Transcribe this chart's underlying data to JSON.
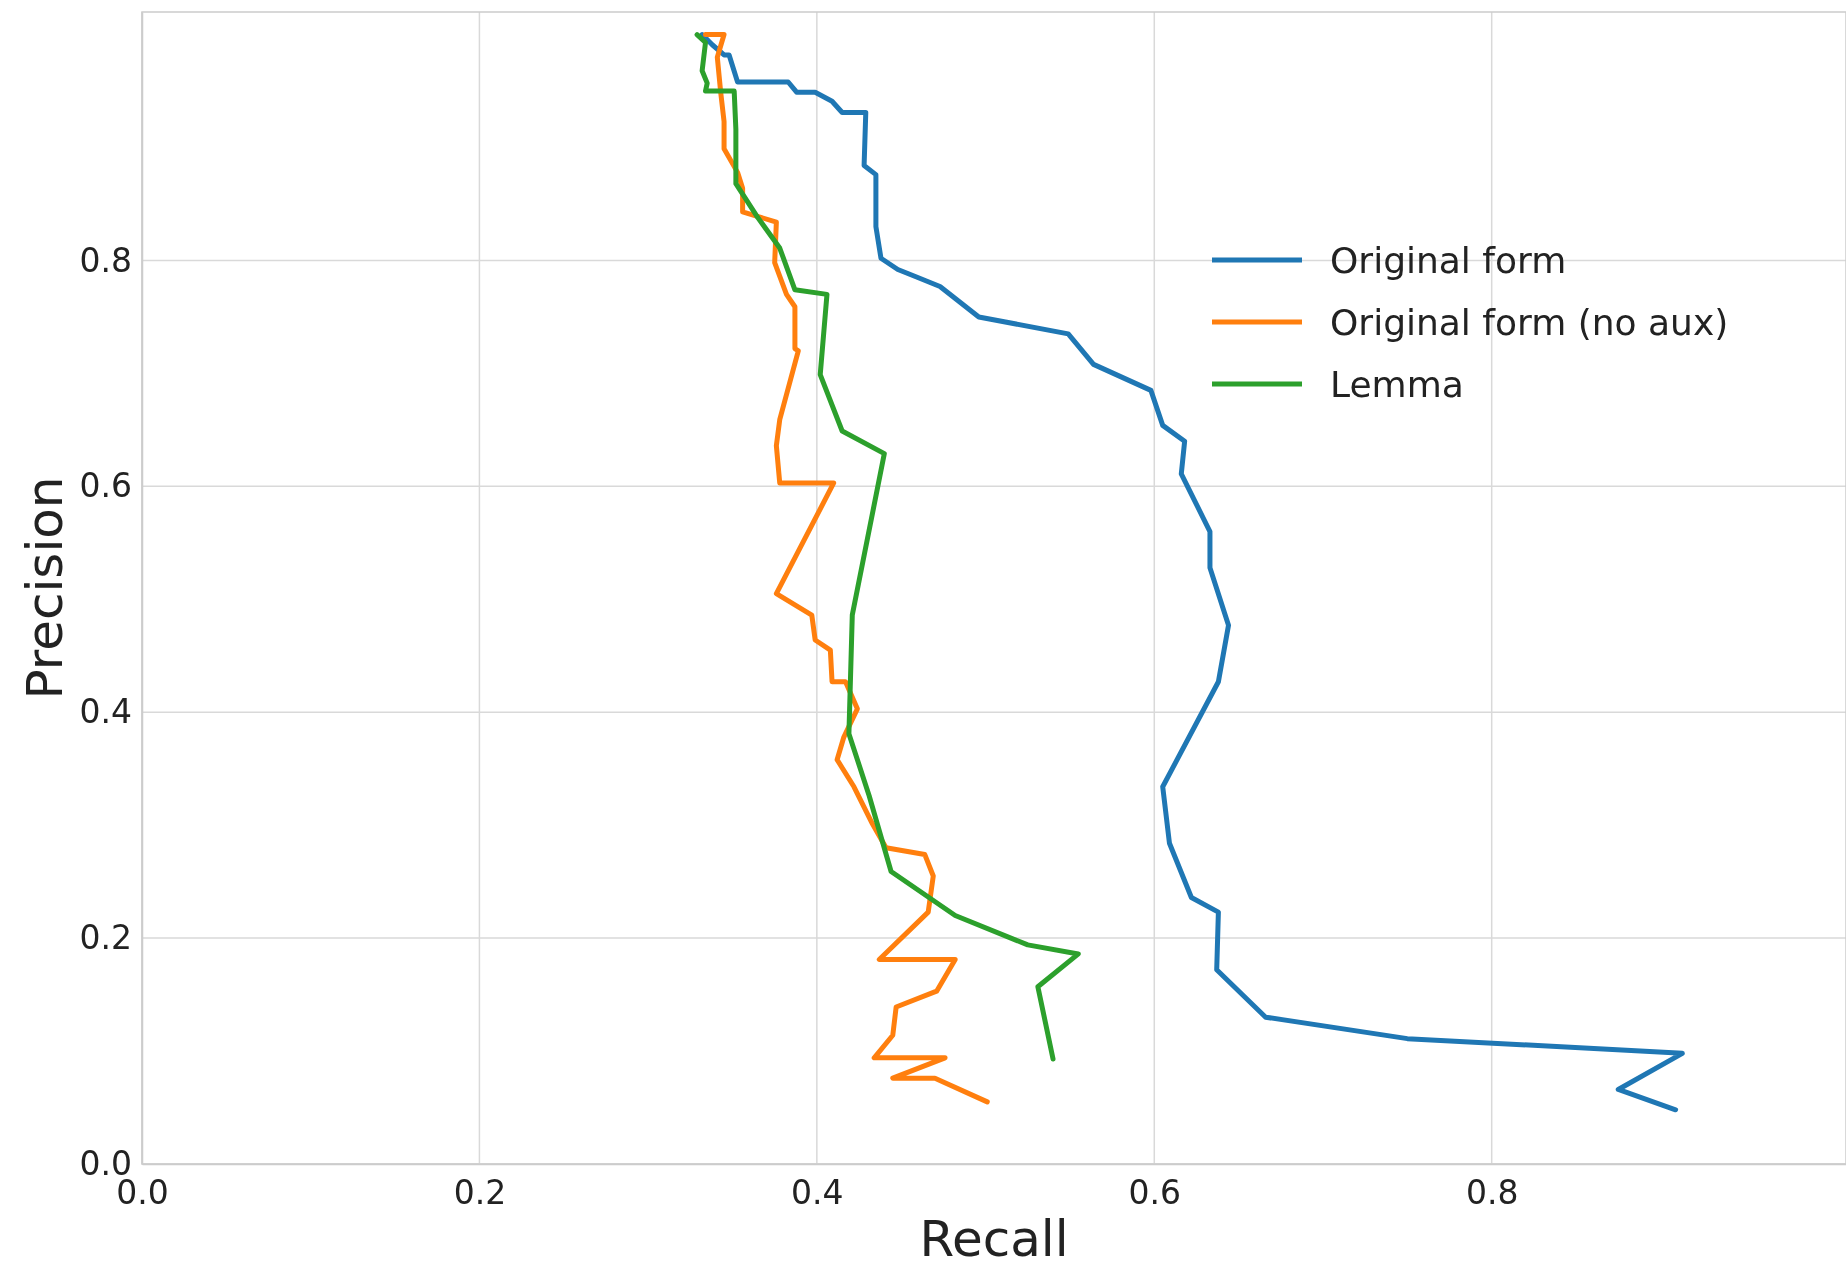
{
  "chart_data": {
    "type": "line",
    "xlabel": "Recall",
    "ylabel": "Precision",
    "xlim": [
      0,
      1.01
    ],
    "ylim": [
      0,
      1.02
    ],
    "xticks": [
      {
        "value": 0,
        "label": "0.0"
      },
      {
        "value": 0.2,
        "label": "0.2"
      },
      {
        "value": 0.4,
        "label": "0.4"
      },
      {
        "value": 0.6,
        "label": "0.6"
      },
      {
        "value": 0.8,
        "label": "0.8"
      }
    ],
    "yticks": [
      {
        "value": 0,
        "label": "0.0"
      },
      {
        "value": 0.2,
        "label": "0.2"
      },
      {
        "value": 0.4,
        "label": "0.4"
      },
      {
        "value": 0.6,
        "label": "0.6"
      },
      {
        "value": 0.8,
        "label": "0.8"
      }
    ],
    "grid": true,
    "legend": "right",
    "marker": "none",
    "line_style": "solid",
    "series": [
      {
        "name": "Original form",
        "color": "#1f77b4",
        "x": [
          0.332,
          0.338,
          0.345,
          0.348,
          0.353,
          0.383,
          0.388,
          0.399,
          0.409,
          0.415,
          0.429,
          0.428,
          0.435,
          0.435,
          0.438,
          0.448,
          0.458,
          0.473,
          0.496,
          0.549,
          0.564,
          0.598,
          0.605,
          0.618,
          0.616,
          0.633,
          0.633,
          0.644,
          0.638,
          0.605,
          0.609,
          0.622,
          0.638,
          0.637,
          0.666,
          0.75,
          0.913,
          0.875,
          0.909
        ],
        "values": [
          1.0,
          0.991,
          0.982,
          0.982,
          0.958,
          0.958,
          0.949,
          0.949,
          0.941,
          0.931,
          0.931,
          0.884,
          0.876,
          0.83,
          0.802,
          0.792,
          0.786,
          0.777,
          0.75,
          0.735,
          0.708,
          0.685,
          0.654,
          0.64,
          0.611,
          0.56,
          0.528,
          0.477,
          0.427,
          0.334,
          0.284,
          0.236,
          0.223,
          0.172,
          0.13,
          0.111,
          0.098,
          0.066,
          0.048
        ]
      },
      {
        "name": "Original form (no aux)",
        "color": "#ff7f0e",
        "x": [
          0.334,
          0.345,
          0.341,
          0.343,
          0.345,
          0.345,
          0.353,
          0.356,
          0.356,
          0.376,
          0.375,
          0.382,
          0.387,
          0.387,
          0.389,
          0.378,
          0.376,
          0.378,
          0.41,
          0.376,
          0.397,
          0.399,
          0.408,
          0.409,
          0.417,
          0.424,
          0.416,
          0.412,
          0.422,
          0.433,
          0.441,
          0.464,
          0.469,
          0.466,
          0.437,
          0.482,
          0.471,
          0.447,
          0.445,
          0.434,
          0.476,
          0.445,
          0.47,
          0.501
        ],
        "values": [
          1.0,
          1.0,
          0.98,
          0.949,
          0.923,
          0.899,
          0.878,
          0.864,
          0.843,
          0.834,
          0.798,
          0.77,
          0.759,
          0.722,
          0.72,
          0.659,
          0.636,
          0.603,
          0.603,
          0.505,
          0.486,
          0.464,
          0.455,
          0.427,
          0.427,
          0.403,
          0.378,
          0.358,
          0.334,
          0.301,
          0.28,
          0.274,
          0.255,
          0.223,
          0.181,
          0.181,
          0.153,
          0.139,
          0.114,
          0.094,
          0.094,
          0.076,
          0.076,
          0.055
        ]
      },
      {
        "name": "Lemma",
        "color": "#2ca02c",
        "x": [
          0.329,
          0.334,
          0.332,
          0.335,
          0.334,
          0.351,
          0.352,
          0.352,
          0.365,
          0.378,
          0.387,
          0.406,
          0.402,
          0.415,
          0.44,
          0.421,
          0.419,
          0.431,
          0.444,
          0.482,
          0.525,
          0.555,
          0.531,
          0.54
        ],
        "values": [
          1.0,
          0.993,
          0.968,
          0.957,
          0.95,
          0.95,
          0.916,
          0.868,
          0.838,
          0.811,
          0.774,
          0.77,
          0.699,
          0.649,
          0.629,
          0.486,
          0.381,
          0.326,
          0.259,
          0.22,
          0.194,
          0.186,
          0.157,
          0.093
        ]
      }
    ]
  }
}
